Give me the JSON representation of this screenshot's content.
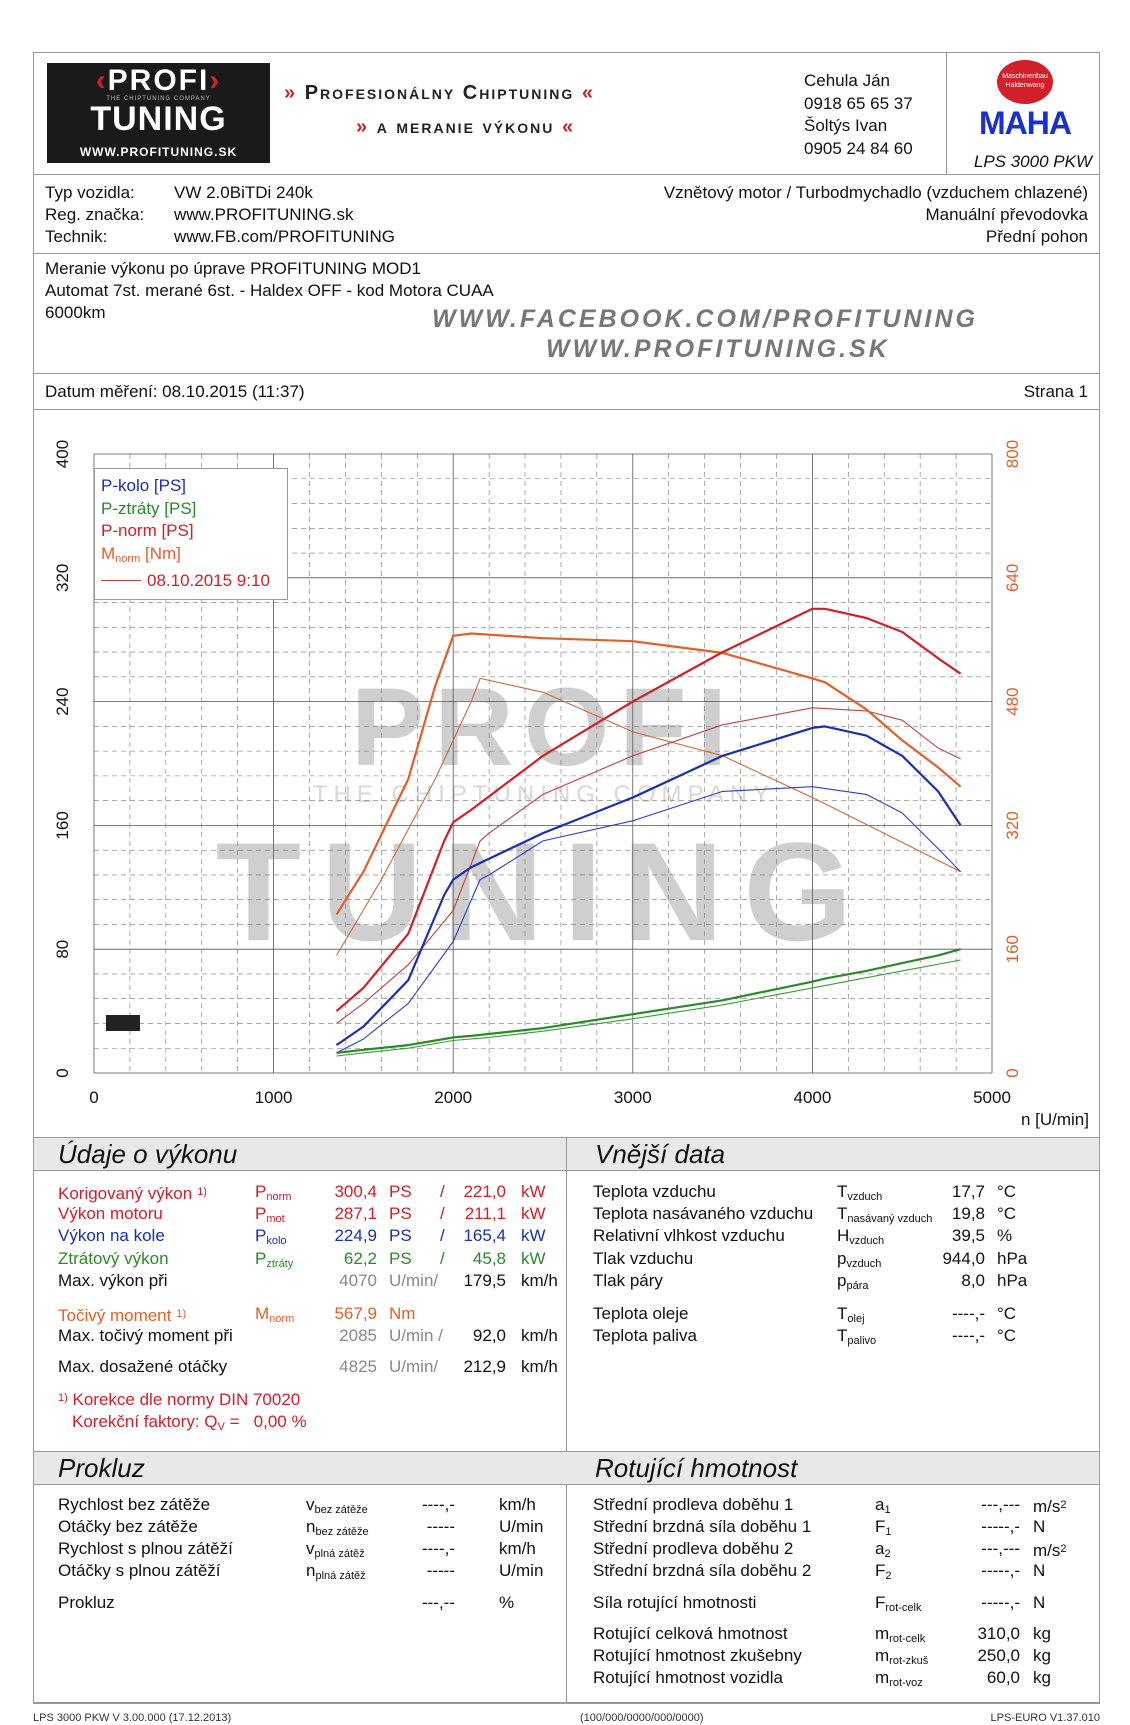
{
  "header": {
    "logo_text": [
      "PROFI",
      "TUNING",
      "THE CHIPTUNING COMPANY",
      "WWW.PROFITUNING.SK"
    ],
    "slogan_line1": "Profesionálny Chiptuning",
    "slogan_line2": "a meranie výkonu",
    "contacts": [
      "Cehula Ján",
      "0918 65 65 37",
      "Šoltýs Ivan",
      "0905 24 84 60"
    ],
    "maha_logo": "MAHA",
    "maha_ring": "Maschinenbau Haldenwang",
    "device": "LPS 3000 PKW"
  },
  "vehicle": {
    "type_label": "Typ vozidla:",
    "type_value": "VW 2.0BiTDi 240k",
    "reg_label": "Reg. značka:",
    "reg_value": "www.PROFITUNING.sk",
    "tech_label": "Technik:",
    "tech_value": "www.FB.com/PROFITUNING",
    "engine": "Vznětový motor / Turbodmychadlo (vzduchem chlazené)",
    "gearbox": "Manuální převodovka",
    "drive": "Přední pohon"
  },
  "notes": {
    "lines": [
      "Meranie výkonu po úprave PROFITUNING MOD1",
      "Automat 7st. merané 6st. - Haldex OFF - kod Motora CUAA",
      "6000km"
    ],
    "watermark1": "WWW.FACEBOOK.COM/PROFITUNING",
    "watermark2": "WWW.PROFITUNING.SK"
  },
  "date": {
    "label": "Datum měření: 08.10.2015 (11:37)",
    "page": "Strana 1"
  },
  "colors": {
    "p_kolo": "#1a2fb0",
    "p_ztraty": "#2a8a2a",
    "p_norm": "#d0202a",
    "m_norm": "#e0602a",
    "gray": "#888888"
  },
  "chart_data": {
    "type": "line",
    "xlabel": "n [U/min]",
    "xlim": [
      0,
      5000
    ],
    "ylim_left": [
      0,
      400
    ],
    "ylim_right": [
      0,
      800
    ],
    "x_ticks": [
      0,
      1000,
      2000,
      3000,
      4000,
      5000
    ],
    "y_ticks_left": [
      0,
      80,
      160,
      240,
      320,
      400
    ],
    "y_ticks_right": [
      0,
      160,
      320,
      480,
      640,
      800
    ],
    "grid": true,
    "legend_position": "top-left",
    "legend": [
      "P-kolo [PS]",
      "P-ztráty [PS]",
      "P-norm [PS]",
      "M",
      "norm",
      "[Nm]",
      "08.10.2015 9:10"
    ],
    "watermark": "PROFI TUNING THE CHIPTUNING COMPANY",
    "series": [
      {
        "name": "P-norm [PS]",
        "axis": "left",
        "color": "#d0202a",
        "width": 2.2,
        "x": [
          1350,
          1500,
          1750,
          1950,
          2000,
          2100,
          2500,
          3000,
          3500,
          4000,
          4070,
          4300,
          4500,
          4700,
          4825
        ],
        "y": [
          40,
          55,
          90,
          150,
          162,
          170,
          205,
          240,
          272,
          300,
          300,
          294,
          285,
          268,
          258
        ]
      },
      {
        "name": "P-kolo [PS]",
        "axis": "left",
        "color": "#1a2fb0",
        "width": 2.2,
        "x": [
          1350,
          1500,
          1750,
          1950,
          2000,
          2100,
          2500,
          3000,
          3500,
          4000,
          4070,
          4300,
          4500,
          4700,
          4825
        ],
        "y": [
          18,
          30,
          60,
          115,
          125,
          133,
          155,
          178,
          205,
          223,
          224,
          218,
          205,
          182,
          160
        ]
      },
      {
        "name": "P-ztráty [PS]",
        "axis": "left",
        "color": "#2a8a2a",
        "width": 2.2,
        "x": [
          1350,
          1500,
          1750,
          1950,
          2000,
          2100,
          2500,
          3000,
          3500,
          4000,
          4070,
          4300,
          4500,
          4700,
          4825
        ],
        "y": [
          13,
          15,
          18,
          22,
          23,
          24,
          29,
          38,
          47,
          59,
          61,
          66,
          71,
          76,
          80
        ]
      },
      {
        "name": "M norm [Nm]",
        "axis": "right",
        "color": "#e0602a",
        "width": 2.2,
        "x": [
          1350,
          1500,
          1750,
          1900,
          2000,
          2100,
          2500,
          3000,
          3500,
          4000,
          4070,
          4300,
          4500,
          4700,
          4825
        ],
        "y": [
          205,
          260,
          380,
          500,
          565,
          568,
          562,
          558,
          543,
          510,
          505,
          470,
          430,
          395,
          370
        ]
      },
      {
        "name": "08.10.2015 9:10 P-norm",
        "axis": "left",
        "color": "#c04040",
        "width": 1.1,
        "x": [
          1350,
          1500,
          1750,
          2000,
          2150,
          2200,
          2500,
          3000,
          3500,
          4000,
          4300,
          4500,
          4700,
          4825
        ],
        "y": [
          32,
          45,
          70,
          105,
          150,
          155,
          180,
          205,
          225,
          236,
          234,
          228,
          210,
          203
        ]
      },
      {
        "name": "08.10.2015 9:10 P-kolo",
        "axis": "left",
        "color": "#2a3fc0",
        "width": 1.1,
        "x": [
          1350,
          1500,
          1750,
          2000,
          2150,
          2200,
          2500,
          3000,
          3500,
          4000,
          4300,
          4500,
          4700,
          4825
        ],
        "y": [
          13,
          22,
          45,
          85,
          125,
          128,
          150,
          163,
          182,
          185,
          180,
          168,
          145,
          130
        ]
      },
      {
        "name": "08.10.2015 9:10 P-ztráty",
        "axis": "left",
        "color": "#3a9a3a",
        "width": 1.1,
        "x": [
          1350,
          1500,
          1750,
          2000,
          2200,
          2500,
          3000,
          3500,
          4000,
          4500,
          4825
        ],
        "y": [
          11,
          13,
          16,
          21,
          23,
          27,
          35,
          44,
          55,
          66,
          73
        ]
      },
      {
        "name": "08.10.2015 9:10 M norm",
        "axis": "right",
        "color": "#d06a3a",
        "width": 1.1,
        "x": [
          1350,
          1600,
          1900,
          2100,
          2150,
          2500,
          3000,
          3500,
          4000,
          4500,
          4825
        ],
        "y": [
          152,
          250,
          380,
          480,
          510,
          492,
          441,
          410,
          356,
          298,
          260
        ]
      }
    ]
  },
  "performance": {
    "title": "Údaje o výkonu",
    "rows": [
      {
        "label": "Korigovaný výkon",
        "note": "1)",
        "sym": "P",
        "sub": "norm",
        "v1": "300,4",
        "u1": "PS",
        "sep": "/",
        "v2": "221,0",
        "u2": "kW",
        "color": "#d0202a"
      },
      {
        "label": "Výkon motoru",
        "sym": "P",
        "sub": "mot",
        "v1": "287,1",
        "u1": "PS",
        "sep": "/",
        "v2": "211,1",
        "u2": "kW",
        "color": "#d0202a"
      },
      {
        "label": "Výkon na kole",
        "sym": "P",
        "sub": "kolo",
        "v1": "224,9",
        "u1": "PS",
        "sep": "/",
        "v2": "165,4",
        "u2": "kW",
        "color": "#1a2fb0"
      },
      {
        "label": "Ztrátový výkon",
        "sym": "P",
        "sub": "ztráty",
        "v1": "62,2",
        "u1": "PS",
        "sep": "/",
        "v2": "45,8",
        "u2": "kW",
        "color": "#2a8a2a"
      },
      {
        "label": "Max. výkon při",
        "v1": "4070",
        "u1": "U/min/",
        "v2": "179,5",
        "u2": "km/h",
        "color": "#111",
        "gray": true
      },
      {
        "label": "Točivý moment",
        "note": "1)",
        "sym": "M",
        "sub": "norm",
        "v1": "567,9",
        "u1": "Nm",
        "color": "#e0602a"
      },
      {
        "label": "Max. točivý moment při",
        "v1": "2085",
        "u1": "U/min /",
        "v2": "92,0",
        "u2": "km/h",
        "color": "#111",
        "gray": true
      },
      {
        "label": "Max. dosažené otáčky",
        "v1": "4825",
        "u1": "U/min/",
        "v2": "212,9",
        "u2": "km/h",
        "color": "#111",
        "gray": true
      }
    ],
    "footnote_mark": "1)",
    "footnote": "Korekce dle normy DIN 70020",
    "factor_label": "Korekční faktory: Q",
    "factor_sub": "V",
    "factor_value": "=   0,00 %"
  },
  "external": {
    "title": "Vnější data",
    "rows": [
      {
        "label": "Teplota vzduchu",
        "sym": "T",
        "sub": "vzduch",
        "v": "17,7",
        "u": "°C"
      },
      {
        "label": "Teplota nasávaného vzduchu",
        "sym": "T",
        "sub": "nasávaný vzduch",
        "v": "19,8",
        "u": "°C"
      },
      {
        "label": "Relativní vlhkost vzduchu",
        "sym": "H",
        "sub": "vzduch",
        "v": "39,5",
        "u": "%"
      },
      {
        "label": "Tlak vzduchu",
        "sym": "p",
        "sub": "vzduch",
        "v": "944,0",
        "u": "hPa"
      },
      {
        "label": "Tlak páry",
        "sym": "p",
        "sub": "pára",
        "v": "8,0",
        "u": "hPa"
      },
      {
        "label": "Teplota oleje",
        "sym": "T",
        "sub": "olej",
        "v": "----,-",
        "u": "°C"
      },
      {
        "label": "Teplota paliva",
        "sym": "T",
        "sub": "palivo",
        "v": "----,-",
        "u": "°C"
      }
    ]
  },
  "slip": {
    "title": "Prokluz",
    "rows": [
      {
        "label": "Rychlost bez zátěže",
        "sym": "v",
        "sub": "bez zátěže",
        "v": "----,-",
        "u": "km/h"
      },
      {
        "label": "Otáčky bez zátěže",
        "sym": "n",
        "sub": "bez zátěže",
        "v": "-----",
        "u": "U/min"
      },
      {
        "label": "Rychlost s plnou zátěží",
        "sym": "v",
        "sub": "plná zátěž",
        "v": "----,-",
        "u": "km/h"
      },
      {
        "label": "Otáčky s plnou zátěží",
        "sym": "n",
        "sub": "plná zátěž",
        "v": "-----",
        "u": "U/min"
      },
      {
        "label": "Prokluz",
        "sym": "",
        "sub": "",
        "v": "---,--",
        "u": "%"
      }
    ]
  },
  "rotating": {
    "title": "Rotující hmotnost",
    "rows": [
      {
        "label": "Střední prodleva doběhu 1",
        "sym": "a",
        "sub": "1",
        "v": "---,---",
        "u": "m/s",
        "sup": "2"
      },
      {
        "label": "Střední brzdná síla doběhu 1",
        "sym": "F",
        "sub": "1",
        "v": "-----,-",
        "u": "N"
      },
      {
        "label": "Střední prodleva doběhu 2",
        "sym": "a",
        "sub": "2",
        "v": "---,---",
        "u": "m/s",
        "sup": "2"
      },
      {
        "label": "Střední brzdná síla doběhu 2",
        "sym": "F",
        "sub": "2",
        "v": "-----,-",
        "u": "N"
      },
      {
        "label": "Síla rotující hmotnosti",
        "sym": "F",
        "sub": "rot-celk",
        "v": "-----,-",
        "u": "N"
      },
      {
        "label": "Rotující celková hmotnost",
        "sym": "m",
        "sub": "rot-celk",
        "v": "310,0",
        "u": "kg"
      },
      {
        "label": "Rotující hmotnost zkušebny",
        "sym": "m",
        "sub": "rot-zkuš",
        "v": "250,0",
        "u": "kg"
      },
      {
        "label": "Rotující hmotnost vozidla",
        "sym": "m",
        "sub": "rot-voz",
        "v": "60,0",
        "u": "kg"
      }
    ]
  },
  "footer": {
    "left": "LPS 3000 PKW V 3.00.000 (17.12.2013)",
    "center": "(100/000/0000/000/0000)",
    "right": "LPS-EURO V1.37.010"
  }
}
